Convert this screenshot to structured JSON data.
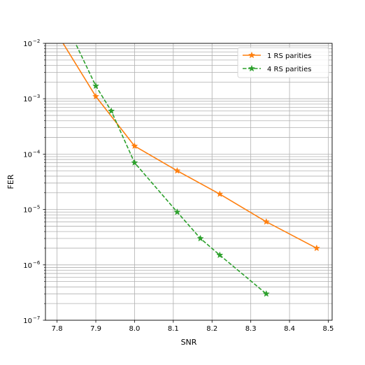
{
  "chart_data": {
    "type": "line",
    "title": "",
    "xlabel": "SNR",
    "ylabel": "FER",
    "xlim": [
      7.77,
      8.51
    ],
    "ylim": [
      1e-07,
      0.01
    ],
    "yscale": "log",
    "grid": "on (major and minor)",
    "legend_position": "top-right",
    "x_ticks": [
      7.8,
      7.9,
      8.0,
      8.1,
      8.2,
      8.3,
      8.4,
      8.5
    ],
    "x_tick_labels": [
      "7.8",
      "7.9",
      "8.0",
      "8.1",
      "8.2",
      "8.3",
      "8.4",
      "8.5"
    ],
    "y_ticks": [
      1e-07,
      1e-06,
      1e-05,
      0.0001,
      0.001,
      0.01
    ],
    "y_tick_labels": [
      {
        "base": "10",
        "exp": "−7"
      },
      {
        "base": "10",
        "exp": "−6"
      },
      {
        "base": "10",
        "exp": "−5"
      },
      {
        "base": "10",
        "exp": "−4"
      },
      {
        "base": "10",
        "exp": "−3"
      },
      {
        "base": "10",
        "exp": "−2"
      }
    ],
    "series": [
      {
        "name": "1 RS parities",
        "color": "#ff7f0e",
        "line_style": "solid",
        "marker": "star",
        "x": [
          7.8,
          7.9,
          8.0,
          8.11,
          8.22,
          8.34,
          8.47
        ],
        "y": [
          0.015,
          0.0011,
          0.00014,
          5e-05,
          1.9e-05,
          6e-06,
          2e-06
        ]
      },
      {
        "name": "4 RS parities",
        "color": "#2ca02c",
        "line_style": "dashed",
        "marker": "star",
        "x": [
          7.8,
          7.9,
          7.94,
          8.0,
          8.11,
          8.17,
          8.22,
          8.34
        ],
        "y": [
          0.05,
          0.0017,
          0.0006,
          7e-05,
          9e-06,
          3e-06,
          1.5e-06,
          3e-07
        ]
      }
    ]
  }
}
